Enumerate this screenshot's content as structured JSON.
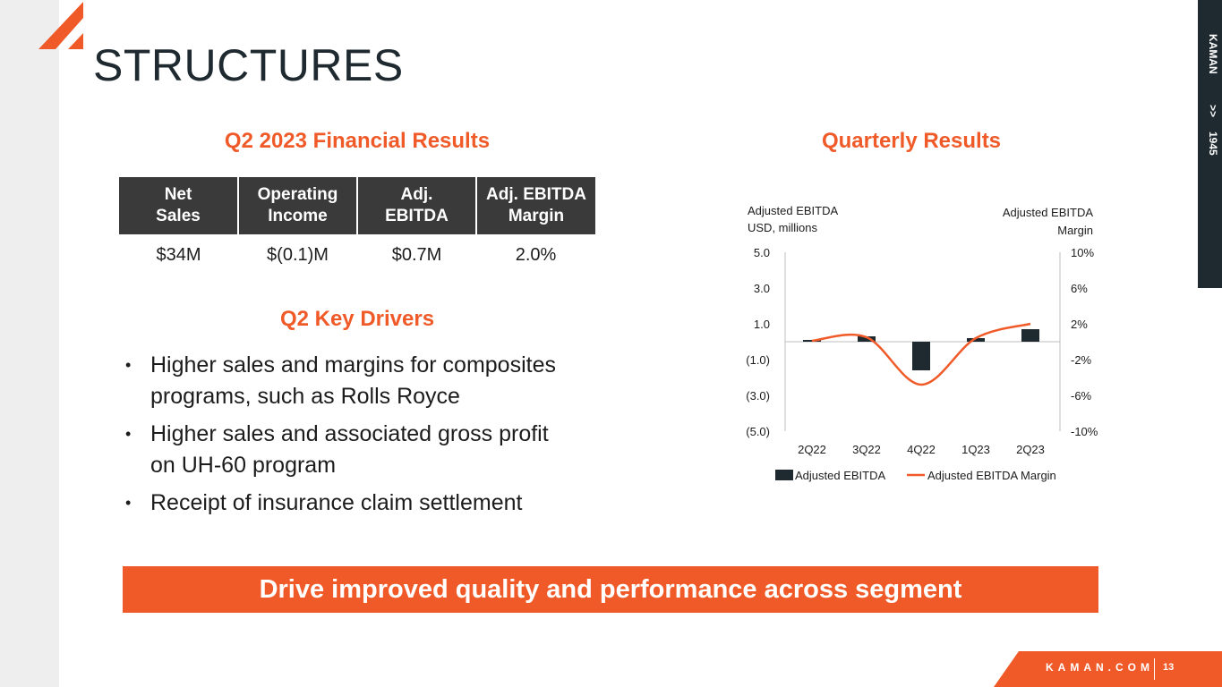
{
  "page": {
    "title": "STRUCTURES",
    "side_tab": {
      "brand": "KAMAN",
      "chevrons": ">>",
      "year": "1945"
    }
  },
  "financial": {
    "title": "Q2 2023 Financial Results",
    "headers": [
      [
        "Net",
        "Sales"
      ],
      [
        "Operating",
        "Income"
      ],
      [
        "Adj.",
        "EBITDA"
      ],
      [
        "Adj. EBITDA",
        "Margin"
      ]
    ],
    "values": [
      "$34M",
      "$(0.1)M",
      "$0.7M",
      "2.0%"
    ]
  },
  "drivers": {
    "title": "Q2 Key Drivers",
    "items": [
      [
        "Higher sales and margins for composites",
        "programs, such as Rolls Royce"
      ],
      [
        "Higher sales and associated gross profit",
        "on UH-60 program"
      ],
      [
        "Receipt of insurance claim settlement"
      ]
    ]
  },
  "quarterly_title": "Quarterly Results",
  "chart_data": {
    "type": "bar",
    "categories": [
      "2Q22",
      "3Q22",
      "4Q22",
      "1Q23",
      "2Q23"
    ],
    "series": [
      {
        "name": "Adjusted EBITDA",
        "type": "bar",
        "axis": "left",
        "values": [
          0.1,
          0.3,
          -1.6,
          0.2,
          0.7
        ]
      },
      {
        "name": "Adjusted EBITDA Margin",
        "type": "line",
        "axis": "right",
        "values": [
          0.1,
          0.5,
          -4.8,
          0.4,
          2.0
        ]
      }
    ],
    "ylabel_left": [
      "Adjusted EBITDA",
      "USD, millions"
    ],
    "ylabel_right": [
      "Adjusted EBITDA",
      "Margin"
    ],
    "ylim_left": [
      -5,
      5
    ],
    "ylim_right": [
      -10,
      10
    ],
    "yticks_left": [
      {
        "value": 5,
        "label": "5.0"
      },
      {
        "value": 3,
        "label": "3.0"
      },
      {
        "value": 1,
        "label": "1.0"
      },
      {
        "value": -1,
        "label": "(1.0)"
      },
      {
        "value": -3,
        "label": "(3.0)"
      },
      {
        "value": -5,
        "label": "(5.0)"
      }
    ],
    "yticks_right": [
      {
        "value": 10,
        "label": "10%"
      },
      {
        "value": 6,
        "label": "6%"
      },
      {
        "value": 2,
        "label": "2%"
      },
      {
        "value": -2,
        "label": "-2%"
      },
      {
        "value": -6,
        "label": "-6%"
      },
      {
        "value": -10,
        "label": "-10%"
      }
    ],
    "legend_position": "bottom",
    "colors": {
      "bar": "#1f2a30",
      "line": "#f05a28"
    }
  },
  "banner": "Drive improved quality and performance across segment",
  "footer": {
    "url": "KAMAN.COM",
    "page": "13"
  },
  "colors": {
    "accent": "#f05a28",
    "dark": "#1f2a30",
    "table_header": "#3a3a3a"
  }
}
